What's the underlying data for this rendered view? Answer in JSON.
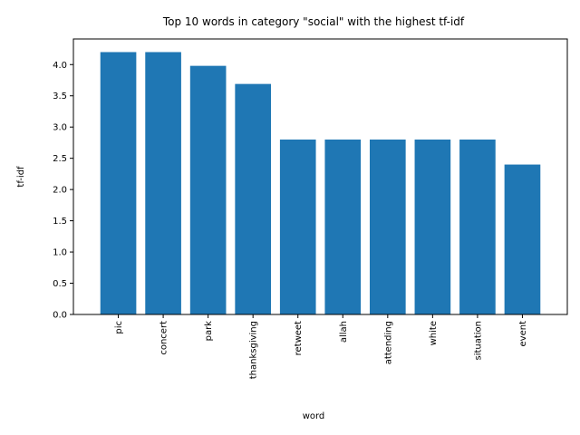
{
  "chart_data": {
    "type": "bar",
    "title": "Top 10 words in category \"social\" with the highest tf-idf",
    "xlabel": "word",
    "ylabel": "tf-idf",
    "categories": [
      "pic",
      "concert",
      "park",
      "thanksgiving",
      "retweet",
      "allah",
      "attending",
      "white",
      "situation",
      "event"
    ],
    "values": [
      4.2,
      4.2,
      3.98,
      3.69,
      2.8,
      2.8,
      2.8,
      2.8,
      2.8,
      2.4
    ],
    "ylim": [
      0,
      4.41
    ],
    "yticks": [
      "0.0",
      "0.5",
      "1.0",
      "1.5",
      "2.0",
      "2.5",
      "3.0",
      "3.5",
      "4.0"
    ],
    "bar_color": "#1f77b4",
    "grid": false,
    "legend": "none"
  }
}
